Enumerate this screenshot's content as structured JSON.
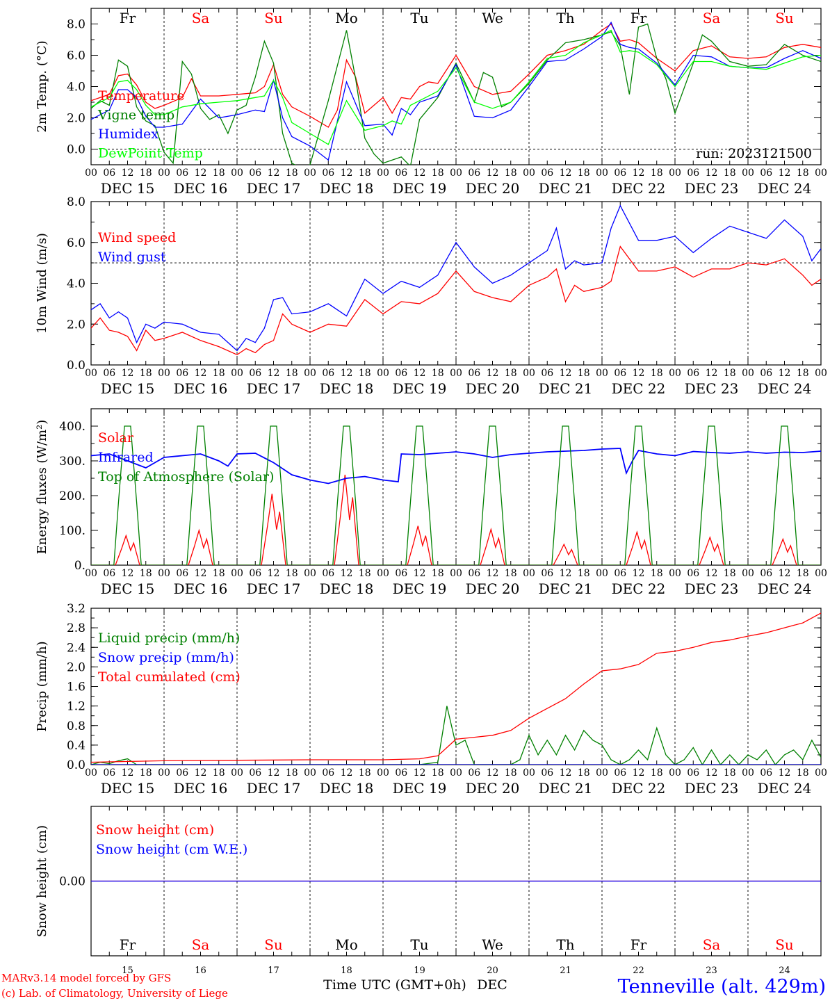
{
  "run_label": "run: 2023121500",
  "model_credit": [
    "MARv3.14 model forced by GFS",
    "(c) Lab. of Climatology, University of Liege"
  ],
  "station": "Tenneville (alt. 429m)",
  "xaxis_title": "Time UTC (GMT+0h)",
  "month_label": "DEC",
  "day_names": [
    "Fr",
    "Sa",
    "Su",
    "Mo",
    "Tu",
    "We",
    "Th",
    "Fr",
    "Sa",
    "Su"
  ],
  "day_dates": [
    "DEC 15",
    "DEC 16",
    "DEC 17",
    "DEC 18",
    "DEC 19",
    "DEC 20",
    "DEC 21",
    "DEC 22",
    "DEC 23",
    "DEC 24"
  ],
  "day_numbers": [
    "15",
    "16",
    "17",
    "18",
    "19",
    "20",
    "21",
    "22",
    "23",
    "24"
  ],
  "hour_ticks": [
    "00",
    "06",
    "12",
    "18"
  ],
  "weekend_color": "#ff0000",
  "weekday_color": "#000000",
  "chart_data": [
    {
      "type": "line",
      "ylabel": "2m Temp. (°C)",
      "ylim": [
        -1.0,
        9.0
      ],
      "yticks": [
        "0.0",
        "2.0",
        "4.0",
        "6.0",
        "8.0"
      ],
      "reference_line": 0.0,
      "x_unit": "hours since DEC 15 00 UTC",
      "series": [
        {
          "name": "Temperature",
          "color": "#ff0000",
          "x": [
            0,
            6,
            9,
            12,
            15,
            18,
            21,
            24,
            30,
            33,
            36,
            42,
            48,
            54,
            57,
            60,
            63,
            66,
            72,
            78,
            81,
            84,
            87,
            90,
            96,
            99,
            102,
            105,
            108,
            111,
            114,
            120,
            126,
            132,
            135,
            138,
            144,
            150,
            156,
            162,
            168,
            171,
            174,
            177,
            180,
            186,
            192,
            198,
            204,
            210,
            216,
            222,
            228,
            234,
            240
          ],
          "y": [
            3.1,
            3.5,
            4.7,
            4.8,
            4.1,
            3.0,
            2.6,
            2.8,
            3.3,
            4.5,
            3.4,
            3.4,
            3.5,
            3.6,
            4.0,
            5.4,
            3.5,
            2.7,
            2.1,
            1.4,
            2.5,
            5.7,
            4.6,
            2.3,
            3.3,
            2.3,
            3.3,
            3.2,
            4.0,
            4.3,
            4.2,
            6.0,
            4.0,
            3.5,
            3.6,
            3.7,
            4.8,
            6.0,
            6.3,
            6.7,
            7.6,
            8.0,
            6.9,
            7.0,
            6.8,
            5.8,
            5.0,
            6.3,
            6.6,
            5.9,
            5.8,
            5.9,
            6.5,
            6.7,
            6.5
          ]
        },
        {
          "name": "Vigne temp",
          "color": "#008000",
          "x": [
            0,
            3,
            6,
            9,
            12,
            15,
            18,
            21,
            24,
            27,
            30,
            33,
            36,
            39,
            42,
            45,
            48,
            51,
            54,
            57,
            60,
            63,
            66,
            69,
            72,
            78,
            84,
            87,
            90,
            93,
            96,
            102,
            105,
            108,
            114,
            120,
            126,
            129,
            132,
            135,
            138,
            144,
            150,
            156,
            162,
            168,
            171,
            174,
            177,
            180,
            183,
            186,
            189,
            192,
            198,
            201,
            204,
            210,
            216,
            222,
            228,
            234,
            240
          ],
          "y": [
            2.6,
            3.1,
            2.8,
            5.7,
            5.3,
            2.7,
            1.8,
            1.5,
            -0.2,
            -0.9,
            5.6,
            4.8,
            2.6,
            1.9,
            2.2,
            1.0,
            2.5,
            2.8,
            4.6,
            6.9,
            5.5,
            1.0,
            -0.9,
            -1.2,
            -1.0,
            3.1,
            7.6,
            4.5,
            0.7,
            -0.3,
            -0.9,
            -0.5,
            -1.1,
            1.9,
            3.3,
            5.5,
            3.0,
            4.9,
            4.6,
            2.7,
            3.0,
            4.2,
            5.7,
            6.8,
            7.0,
            7.3,
            7.5,
            6.6,
            3.5,
            7.8,
            8.0,
            5.8,
            4.5,
            2.3,
            5.5,
            7.3,
            6.9,
            5.6,
            5.3,
            5.4,
            6.7,
            6.0,
            5.6
          ]
        },
        {
          "name": "Humidex",
          "color": "#0000ff",
          "x": [
            0,
            6,
            9,
            12,
            15,
            18,
            21,
            24,
            30,
            36,
            42,
            48,
            54,
            57,
            60,
            63,
            66,
            72,
            78,
            84,
            90,
            96,
            99,
            102,
            105,
            108,
            114,
            120,
            126,
            132,
            138,
            144,
            150,
            156,
            162,
            168,
            171,
            174,
            177,
            180,
            186,
            192,
            198,
            204,
            210,
            216,
            222,
            228,
            234,
            240
          ],
          "y": [
            1.9,
            2.5,
            3.8,
            3.8,
            3.3,
            2.1,
            1.4,
            1.4,
            1.6,
            3.2,
            2.0,
            2.2,
            2.5,
            2.4,
            4.4,
            2.0,
            0.8,
            0.2,
            -0.7,
            4.3,
            1.5,
            1.6,
            0.9,
            2.6,
            2.2,
            3.0,
            3.4,
            5.4,
            2.1,
            2.0,
            2.5,
            4.0,
            5.6,
            5.7,
            6.4,
            7.2,
            8.1,
            6.7,
            6.5,
            6.4,
            5.5,
            4.1,
            6.0,
            5.9,
            5.3,
            5.2,
            5.2,
            5.8,
            6.3,
            5.8
          ]
        },
        {
          "name": "DewPoint Temp",
          "color": "#00ff00",
          "x": [
            0,
            6,
            9,
            12,
            15,
            18,
            21,
            24,
            30,
            36,
            42,
            48,
            54,
            57,
            60,
            63,
            66,
            72,
            78,
            84,
            90,
            96,
            99,
            102,
            105,
            108,
            114,
            120,
            126,
            132,
            138,
            144,
            150,
            156,
            162,
            168,
            171,
            174,
            177,
            180,
            186,
            192,
            198,
            204,
            210,
            216,
            222,
            228,
            234,
            240
          ],
          "y": [
            2.7,
            3.3,
            4.3,
            4.4,
            3.8,
            2.8,
            2.2,
            2.2,
            2.7,
            2.9,
            3.0,
            3.1,
            3.3,
            3.4,
            4.4,
            3.3,
            1.7,
            1.0,
            0.3,
            3.1,
            1.2,
            1.5,
            1.8,
            1.6,
            2.8,
            3.1,
            3.7,
            5.2,
            3.0,
            2.6,
            3.0,
            4.3,
            5.8,
            6.0,
            6.8,
            7.3,
            7.6,
            6.2,
            6.3,
            6.2,
            5.4,
            4.0,
            5.6,
            5.6,
            5.3,
            5.2,
            5.1,
            5.5,
            5.9,
            6.0
          ]
        }
      ]
    },
    {
      "type": "line",
      "ylabel": "10m Wind (m/s)",
      "ylim": [
        0.0,
        8.0
      ],
      "yticks": [
        "0.0",
        "2.0",
        "4.0",
        "6.0",
        "8.0"
      ],
      "reference_line": 5.0,
      "series": [
        {
          "name": "Wind speed",
          "color": "#ff0000",
          "x": [
            0,
            3,
            6,
            9,
            12,
            15,
            18,
            21,
            24,
            30,
            36,
            42,
            48,
            51,
            54,
            57,
            60,
            63,
            66,
            72,
            78,
            84,
            90,
            96,
            102,
            108,
            114,
            120,
            126,
            132,
            138,
            144,
            150,
            153,
            156,
            159,
            162,
            168,
            171,
            174,
            180,
            186,
            192,
            198,
            204,
            210,
            216,
            222,
            228,
            234,
            237,
            240
          ],
          "y": [
            1.8,
            2.3,
            1.7,
            1.6,
            1.4,
            0.7,
            1.7,
            1.2,
            1.3,
            1.6,
            1.2,
            0.9,
            0.5,
            0.8,
            0.6,
            1.0,
            1.2,
            2.5,
            2.0,
            1.6,
            2.0,
            1.9,
            3.2,
            2.5,
            3.1,
            3.0,
            3.5,
            4.6,
            3.6,
            3.3,
            3.1,
            3.9,
            4.3,
            4.7,
            3.1,
            3.9,
            3.6,
            3.8,
            4.1,
            5.8,
            4.6,
            4.6,
            4.8,
            4.3,
            4.7,
            4.7,
            5.0,
            4.9,
            5.2,
            4.4,
            3.9,
            4.2
          ]
        },
        {
          "name": "Wind gust",
          "color": "#0000ff",
          "x": [
            0,
            3,
            6,
            9,
            12,
            15,
            18,
            21,
            24,
            30,
            36,
            42,
            48,
            51,
            54,
            57,
            60,
            63,
            66,
            72,
            78,
            84,
            90,
            96,
            102,
            108,
            114,
            120,
            126,
            132,
            138,
            144,
            150,
            153,
            156,
            159,
            162,
            168,
            171,
            174,
            180,
            186,
            192,
            198,
            204,
            210,
            216,
            222,
            228,
            234,
            237,
            240
          ],
          "y": [
            2.7,
            3.0,
            2.3,
            2.6,
            2.3,
            1.1,
            2.0,
            1.8,
            2.1,
            2.0,
            1.6,
            1.5,
            0.7,
            1.3,
            1.1,
            1.8,
            3.2,
            3.3,
            2.5,
            2.6,
            3.0,
            2.4,
            4.2,
            3.5,
            4.1,
            3.8,
            4.4,
            6.0,
            4.8,
            4.0,
            4.4,
            5.0,
            5.6,
            6.7,
            4.7,
            5.1,
            4.9,
            5.0,
            6.7,
            7.8,
            6.1,
            6.1,
            6.3,
            5.5,
            6.2,
            6.8,
            6.5,
            6.2,
            7.1,
            6.3,
            5.1,
            5.7
          ]
        }
      ]
    },
    {
      "type": "line",
      "ylabel": "Energy fluxes (W/m²)",
      "ylim": [
        0.0,
        450.0
      ],
      "yticks": [
        "0.",
        "100.",
        "200.",
        "300.",
        "400."
      ],
      "series": [
        {
          "name": "Solar",
          "color": "#ff0000",
          "daily_peaks": [
            85,
            100,
            205,
            260,
            113,
            103,
            60,
            95,
            80,
            75
          ]
        },
        {
          "name": "Infrared",
          "color": "#0000ff",
          "x": [
            0,
            6,
            12,
            18,
            24,
            30,
            36,
            42,
            45,
            48,
            54,
            60,
            66,
            72,
            78,
            84,
            90,
            96,
            101,
            102,
            108,
            114,
            120,
            126,
            132,
            138,
            144,
            150,
            156,
            162,
            168,
            174,
            176,
            178,
            180,
            186,
            192,
            198,
            204,
            210,
            216,
            222,
            228,
            234,
            240
          ],
          "y": [
            315,
            320,
            300,
            280,
            310,
            315,
            320,
            300,
            285,
            320,
            322,
            295,
            260,
            245,
            235,
            250,
            255,
            245,
            240,
            320,
            318,
            322,
            326,
            320,
            310,
            318,
            322,
            326,
            328,
            330,
            334,
            336,
            265,
            300,
            330,
            320,
            315,
            327,
            324,
            322,
            326,
            322,
            325,
            324,
            328
          ]
        },
        {
          "name": "Top of Atmosphere (Solar)",
          "color": "#008000",
          "daily_peak": 400
        }
      ]
    },
    {
      "type": "line",
      "ylabel": "Precip (mm/h)",
      "ylim": [
        0.0,
        3.2
      ],
      "yticks": [
        "0.0",
        "0.4",
        "0.8",
        "1.2",
        "1.6",
        "2.0",
        "2.4",
        "2.8",
        "3.2"
      ],
      "series": [
        {
          "name": "Liquid precip (mm/h)",
          "color": "#008000",
          "x": [
            0,
            3,
            6,
            9,
            12,
            15,
            18,
            24,
            96,
            108,
            114,
            117,
            120,
            123,
            126,
            132,
            138,
            141,
            144,
            147,
            150,
            153,
            156,
            159,
            162,
            165,
            168,
            171,
            174,
            177,
            180,
            183,
            186,
            189,
            192,
            195,
            198,
            201,
            204,
            207,
            210,
            213,
            216,
            219,
            222,
            225,
            228,
            231,
            234,
            237,
            240
          ],
          "y": [
            0.0,
            0.05,
            0.02,
            0.08,
            0.12,
            0.0,
            0.0,
            0.0,
            0.0,
            0.0,
            0.05,
            1.2,
            0.4,
            0.5,
            0.0,
            0.0,
            0.0,
            0.1,
            0.6,
            0.2,
            0.5,
            0.2,
            0.6,
            0.3,
            0.7,
            0.5,
            0.4,
            0.1,
            0.0,
            0.1,
            0.3,
            0.1,
            0.75,
            0.2,
            0.0,
            0.1,
            0.35,
            0.0,
            0.3,
            0.0,
            0.2,
            0.0,
            0.2,
            0.1,
            0.3,
            0.0,
            0.2,
            0.3,
            0.1,
            0.5,
            0.15
          ]
        },
        {
          "name": "Snow precip (mm/h)",
          "color": "#0000ff",
          "x": [
            0,
            240
          ],
          "y": [
            0.0,
            0.0
          ]
        },
        {
          "name": "Total cumulated (cm)",
          "color": "#ff0000",
          "x": [
            0,
            24,
            48,
            72,
            96,
            108,
            114,
            117,
            120,
            126,
            132,
            138,
            144,
            150,
            156,
            162,
            168,
            174,
            180,
            186,
            192,
            198,
            204,
            210,
            216,
            222,
            228,
            234,
            240
          ],
          "y": [
            0.05,
            0.08,
            0.09,
            0.1,
            0.1,
            0.12,
            0.18,
            0.35,
            0.52,
            0.56,
            0.6,
            0.7,
            0.95,
            1.15,
            1.35,
            1.65,
            1.92,
            1.96,
            2.05,
            2.28,
            2.32,
            2.4,
            2.5,
            2.55,
            2.63,
            2.7,
            2.8,
            2.9,
            3.1
          ]
        }
      ]
    },
    {
      "type": "line",
      "ylabel": "Snow height (cm)",
      "ylim": [
        -1.0,
        1.0
      ],
      "yticks": [
        "0.00"
      ],
      "series": [
        {
          "name": "Snow height (cm)",
          "color": "#ff0000",
          "x": [
            0,
            240
          ],
          "y": [
            0.0,
            0.0
          ]
        },
        {
          "name": "Snow height (cm W.E.)",
          "color": "#0000ff",
          "x": [
            0,
            240
          ],
          "y": [
            0.0,
            0.0
          ]
        }
      ]
    }
  ]
}
